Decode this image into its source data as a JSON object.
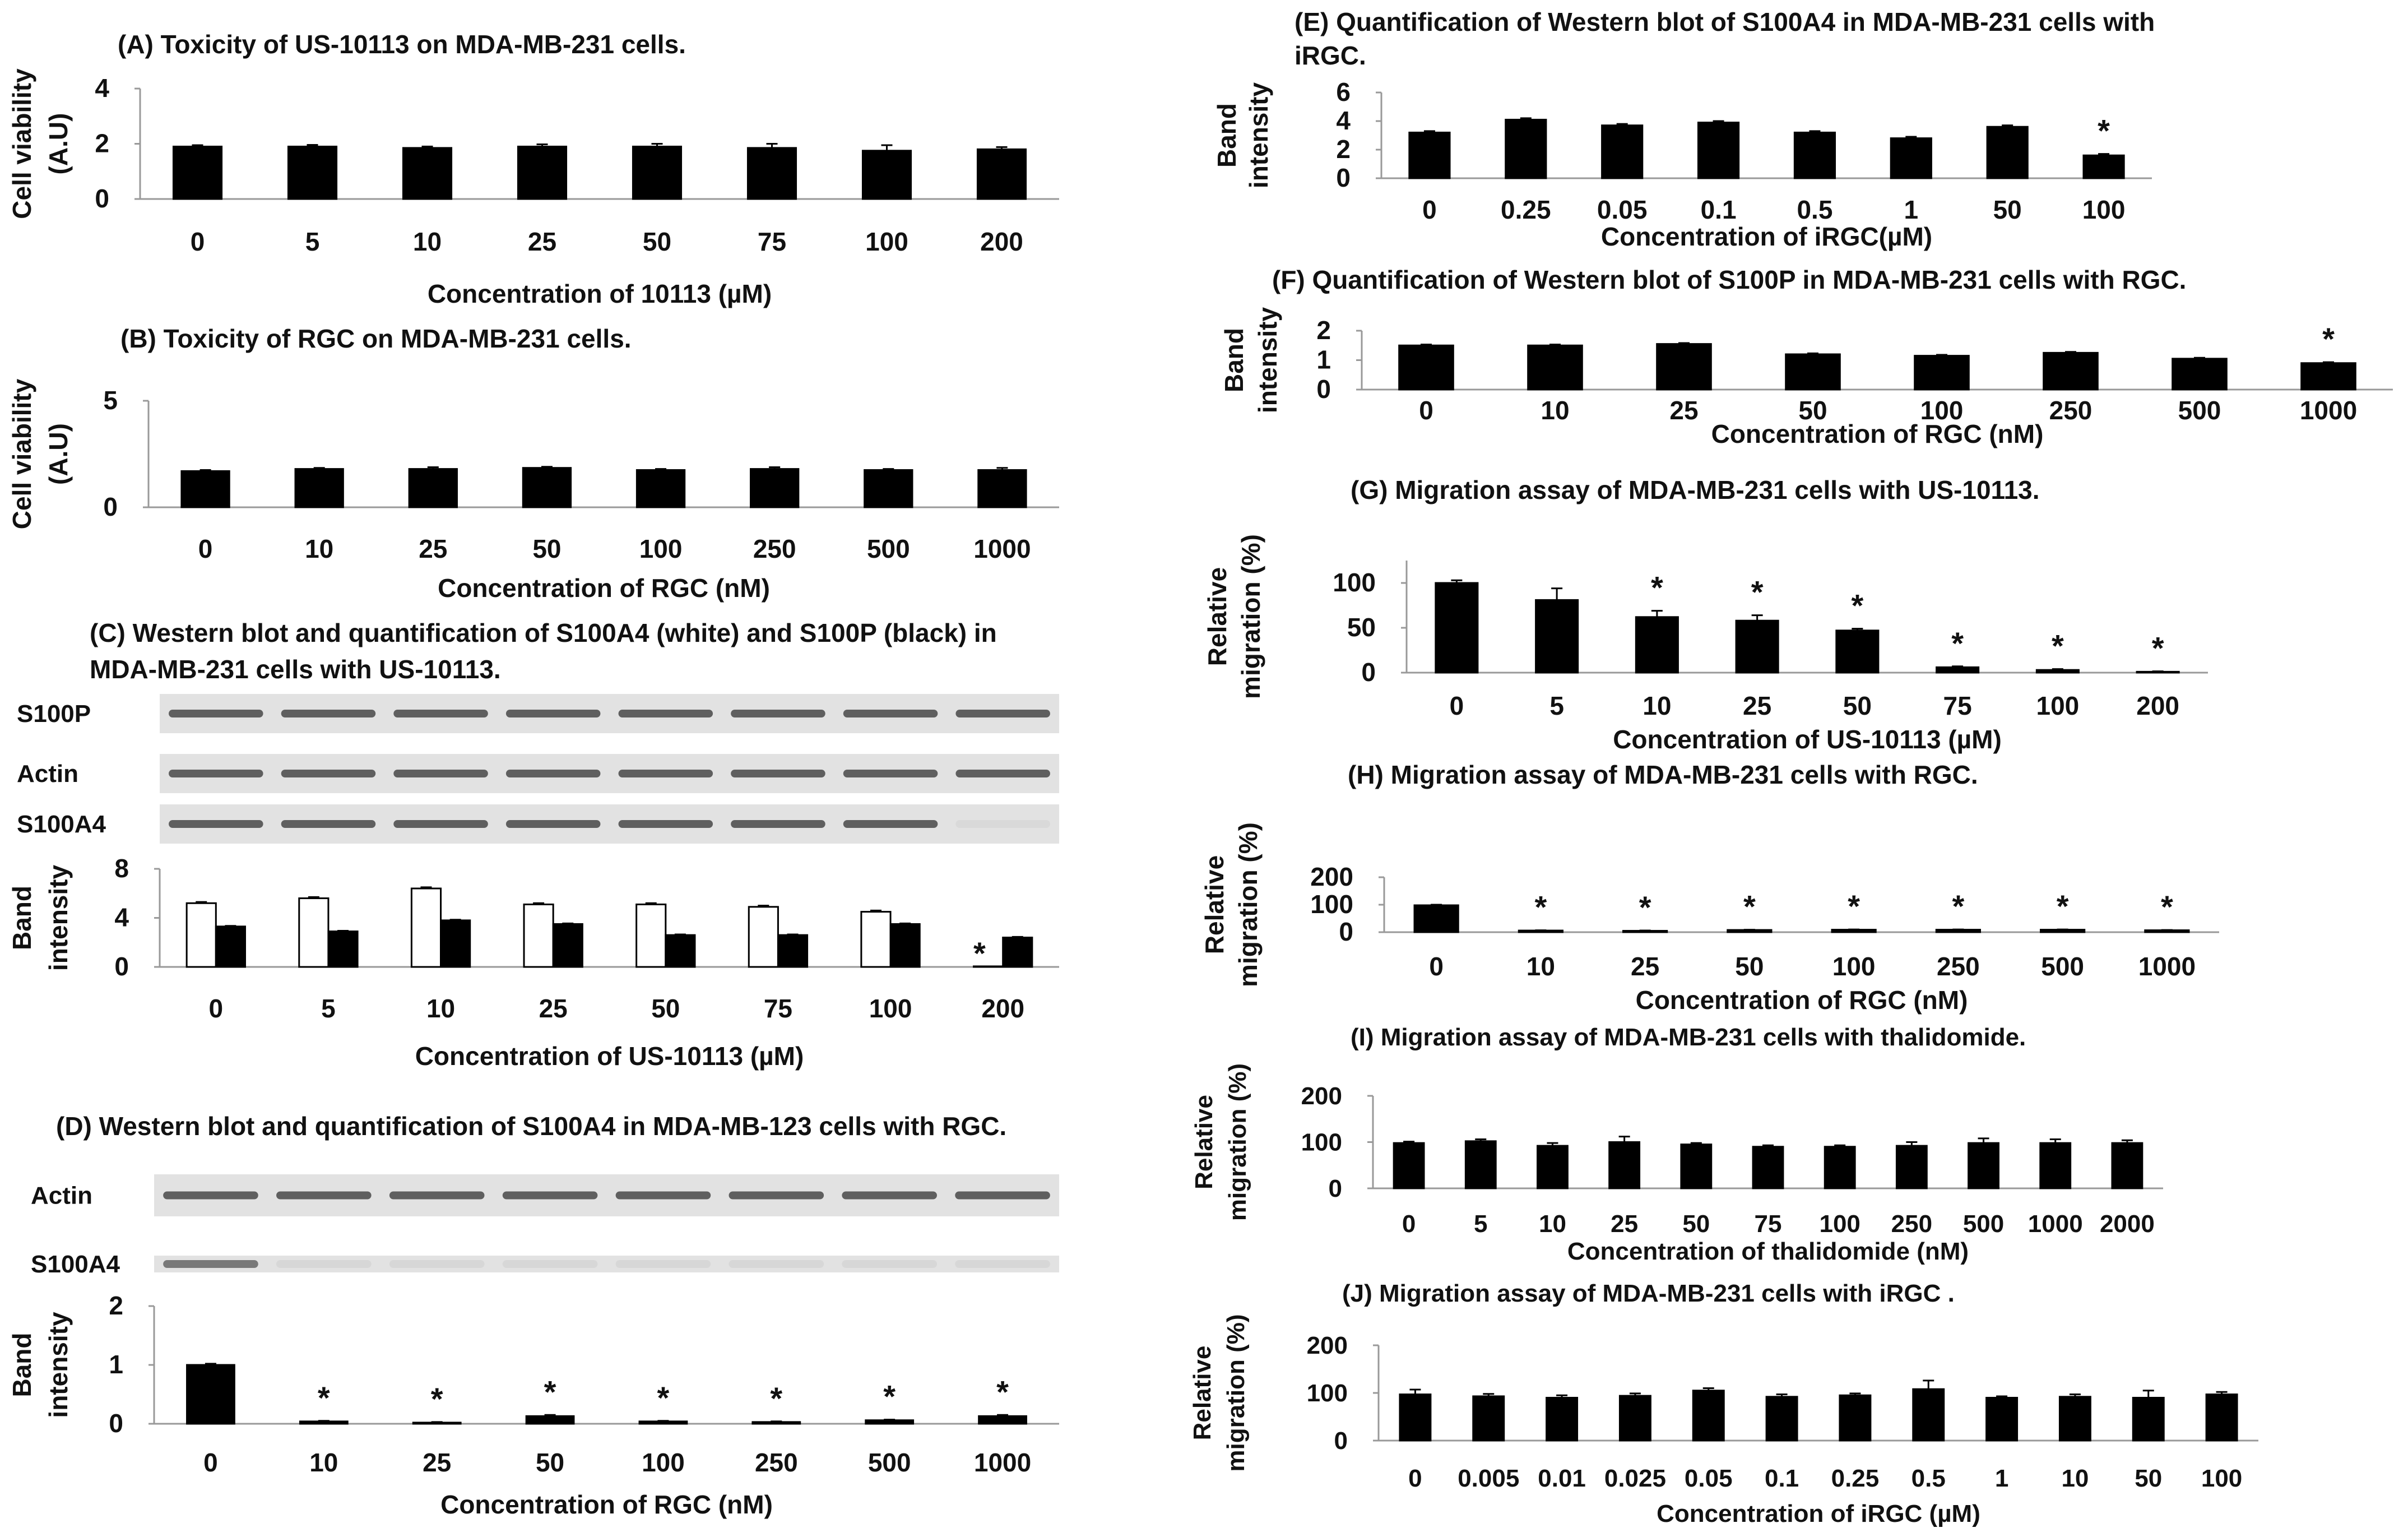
{
  "chart_data": [
    {
      "id": "A",
      "type": "bar",
      "title": "(A) Toxicity of US-10113 on MDA-MB-231 cells.",
      "ylabel_lines": [
        "Cell viability",
        "(A.U)"
      ],
      "xlabel": "Concentration of 10113 (µM)",
      "categories": [
        "0",
        "5",
        "10",
        "25",
        "50",
        "75",
        "100",
        "200"
      ],
      "yticks": [
        "0",
        "2",
        "4"
      ],
      "ylim": [
        0,
        4
      ],
      "series": [
        {
          "name": "viability",
          "color": "#000000",
          "values": [
            1.9,
            1.9,
            1.85,
            1.9,
            1.9,
            1.85,
            1.75,
            1.8
          ],
          "errors": [
            0.05,
            0.06,
            0.05,
            0.08,
            0.1,
            0.15,
            0.2,
            0.08
          ]
        }
      ],
      "significant": []
    },
    {
      "id": "B",
      "type": "bar",
      "title": "(B) Toxicity of RGC on MDA-MB-231 cells.",
      "ylabel_lines": [
        "Cell viability",
        "(A.U)"
      ],
      "xlabel": "Concentration of RGC (nM)",
      "categories": [
        "0",
        "10",
        "25",
        "50",
        "100",
        "250",
        "500",
        "1000"
      ],
      "yticks": [
        "0",
        "5"
      ],
      "ylim": [
        0,
        5
      ],
      "series": [
        {
          "name": "viability",
          "color": "#000000",
          "values": [
            1.7,
            1.8,
            1.8,
            1.85,
            1.75,
            1.8,
            1.75,
            1.75
          ],
          "errors": [
            0.05,
            0.05,
            0.08,
            0.05,
            0.05,
            0.08,
            0.05,
            0.1
          ]
        }
      ],
      "significant": []
    },
    {
      "id": "C",
      "type": "bar",
      "title_lines": [
        "(C) Western blot and quantification of S100A4 (white) and S100P (black) in",
        "MDA-MB-231 cells with US-10113."
      ],
      "blot_labels": [
        "S100P",
        "Actin",
        "S100A4"
      ],
      "ylabel_lines": [
        "Band",
        "intensity"
      ],
      "xlabel": "Concentration of US-10113 (µM)",
      "categories": [
        "0",
        "5",
        "10",
        "25",
        "50",
        "75",
        "100",
        "200"
      ],
      "yticks": [
        "0",
        "4",
        "8"
      ],
      "ylim": [
        0,
        8
      ],
      "series": [
        {
          "name": "S100A4",
          "color": "#ffffff",
          "values": [
            5.2,
            5.6,
            6.4,
            5.1,
            5.1,
            4.9,
            4.5,
            0.05
          ],
          "errors": [
            0.1,
            0.1,
            0.1,
            0.1,
            0.1,
            0.1,
            0.1,
            0
          ]
        },
        {
          "name": "S100P",
          "color": "#000000",
          "values": [
            3.3,
            2.9,
            3.8,
            3.5,
            2.6,
            2.6,
            3.5,
            2.4
          ],
          "errors": [
            0.05,
            0.05,
            0.05,
            0.05,
            0.05,
            0.05,
            0.05,
            0.05
          ]
        }
      ],
      "significant": [
        "200"
      ]
    },
    {
      "id": "D",
      "type": "bar",
      "title": "(D) Western blot and quantification of S100A4 in MDA-MB-123 cells with RGC.",
      "blot_labels": [
        "Actin",
        "S100A4"
      ],
      "ylabel_lines": [
        "Band",
        "intensity"
      ],
      "xlabel": "Concentration of RGC (nM)",
      "categories": [
        "0",
        "10",
        "25",
        "50",
        "100",
        "250",
        "500",
        "1000"
      ],
      "yticks": [
        "0",
        "1",
        "2"
      ],
      "ylim": [
        0,
        2
      ],
      "series": [
        {
          "name": "S100A4",
          "color": "#000000",
          "values": [
            1.0,
            0.04,
            0.02,
            0.13,
            0.04,
            0.03,
            0.06,
            0.13
          ],
          "errors": [
            0.02,
            0.01,
            0.01,
            0.02,
            0.01,
            0.01,
            0.01,
            0.02
          ]
        }
      ],
      "significant": [
        "10",
        "25",
        "50",
        "100",
        "250",
        "500",
        "1000"
      ]
    },
    {
      "id": "E",
      "type": "bar",
      "title_lines": [
        "(E) Quantification of Western blot of S100A4 in MDA-MB-231 cells with",
        "iRGC."
      ],
      "ylabel_lines": [
        "Band",
        "intensity"
      ],
      "xlabel": "Concentration of iRGC(µM)",
      "categories": [
        "0",
        "0.25",
        "0.05",
        "0.1",
        "0.5",
        "1",
        "50",
        "100"
      ],
      "yticks": [
        "0",
        "2",
        "4",
        "6"
      ],
      "ylim": [
        0,
        6
      ],
      "series": [
        {
          "name": "S100A4",
          "color": "#000000",
          "values": [
            3.2,
            4.1,
            3.7,
            3.9,
            3.2,
            2.8,
            3.6,
            1.6
          ],
          "errors": [
            0.1,
            0.1,
            0.1,
            0.1,
            0.1,
            0.1,
            0.1,
            0.1
          ]
        }
      ],
      "significant": [
        "100"
      ]
    },
    {
      "id": "F",
      "type": "bar",
      "title": "(F) Quantification of Western blot of S100P in MDA-MB-231 cells with RGC.",
      "ylabel_lines": [
        "Band",
        "intensity"
      ],
      "xlabel": "Concentration of RGC (nM)",
      "categories": [
        "0",
        "10",
        "25",
        "50",
        "100",
        "250",
        "500",
        "1000"
      ],
      "yticks": [
        "0",
        "1",
        "2"
      ],
      "ylim": [
        0,
        2
      ],
      "series": [
        {
          "name": "S100P",
          "color": "#000000",
          "values": [
            1.5,
            1.5,
            1.55,
            1.2,
            1.15,
            1.25,
            1.05,
            0.9
          ],
          "errors": [
            0.03,
            0.03,
            0.03,
            0.03,
            0.03,
            0.03,
            0.03,
            0.03
          ]
        }
      ],
      "significant": [
        "1000"
      ]
    },
    {
      "id": "G",
      "type": "bar",
      "title": "(G) Migration assay of MDA-MB-231 cells with US-10113.",
      "ylabel_lines": [
        "Relative",
        "migration (%)"
      ],
      "xlabel": "Concentration of  US-10113 (µM)",
      "categories": [
        "0",
        "5",
        "10",
        "25",
        "50",
        "75",
        "100",
        "200"
      ],
      "yticks": [
        "0",
        "50",
        "100"
      ],
      "ylim": [
        0,
        125
      ],
      "series": [
        {
          "name": "migration",
          "color": "#000000",
          "values": [
            100,
            81,
            62,
            58,
            47,
            6,
            3,
            1
          ],
          "errors": [
            3,
            13,
            7,
            6,
            2,
            1,
            1,
            0.5
          ]
        }
      ],
      "significant": [
        "10",
        "25",
        "50",
        "75",
        "100",
        "200"
      ]
    },
    {
      "id": "H",
      "type": "bar",
      "title": "(H) Migration assay of MDA-MB-231 cells with RGC.",
      "ylabel_lines": [
        "Relative",
        "migration (%)"
      ],
      "xlabel": "Concentration of RGC (nM)",
      "categories": [
        "0",
        "10",
        "25",
        "50",
        "100",
        "250",
        "500",
        "1000"
      ],
      "yticks": [
        "0",
        "100",
        "200"
      ],
      "ylim": [
        0,
        200
      ],
      "series": [
        {
          "name": "migration",
          "color": "#000000",
          "values": [
            98,
            6,
            5,
            8,
            9,
            9,
            9,
            7
          ],
          "errors": [
            2,
            1,
            1,
            1,
            1,
            1,
            1,
            1
          ]
        }
      ],
      "significant": [
        "10",
        "25",
        "50",
        "100",
        "250",
        "500",
        "1000"
      ]
    },
    {
      "id": "I",
      "type": "bar",
      "title": "(I) Migration assay of MDA-MB-231 cells with thalidomide.",
      "ylabel_lines": [
        "Relative",
        "migration (%)"
      ],
      "xlabel": "Concentration of thalidomide (nM)",
      "categories": [
        "0",
        "5",
        "10",
        "25",
        "50",
        "75",
        "100",
        "250",
        "500",
        "1000",
        "2000"
      ],
      "yticks": [
        "0",
        "100",
        "200"
      ],
      "ylim": [
        0,
        200
      ],
      "series": [
        {
          "name": "migration",
          "color": "#000000",
          "values": [
            98,
            102,
            92,
            100,
            95,
            90,
            90,
            92,
            98,
            98,
            98
          ],
          "errors": [
            3,
            4,
            6,
            12,
            3,
            3,
            3,
            8,
            10,
            8,
            6
          ]
        }
      ],
      "significant": []
    },
    {
      "id": "J",
      "type": "bar",
      "title": "(J) Migration assay of MDA-MB-231 cells with iRGC .",
      "ylabel_lines": [
        "Relative",
        "migration (%)"
      ],
      "xlabel": "Concentration of iRGC (µM)",
      "categories": [
        "0",
        "0.005",
        "0.01",
        "0.025",
        "0.05",
        "0.1",
        "0.25",
        "0.5",
        "1",
        "10",
        "50",
        "100"
      ],
      "yticks": [
        "0",
        "100",
        "200"
      ],
      "ylim": [
        0,
        200
      ],
      "series": [
        {
          "name": "migration",
          "color": "#000000",
          "values": [
            97,
            93,
            90,
            94,
            105,
            92,
            95,
            108,
            90,
            92,
            90,
            97
          ],
          "errors": [
            10,
            5,
            5,
            5,
            5,
            5,
            4,
            18,
            3,
            5,
            15,
            5
          ]
        }
      ],
      "significant": []
    }
  ]
}
